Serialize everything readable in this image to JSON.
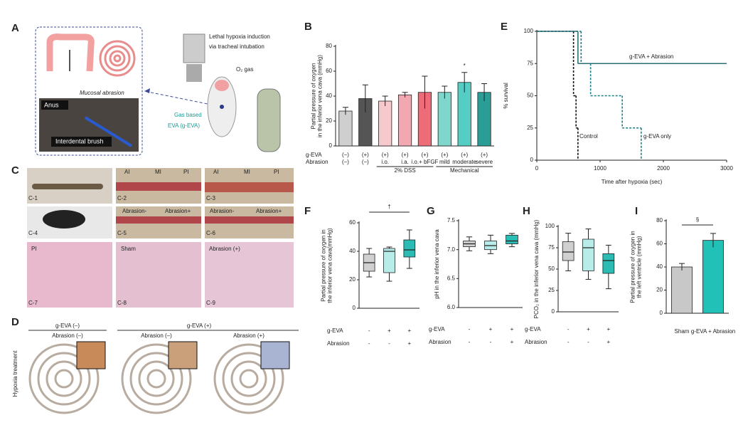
{
  "panel_labels": [
    "A",
    "B",
    "C",
    "D",
    "E",
    "F",
    "G",
    "H",
    "I"
  ],
  "panel_a": {
    "mucosal_abrasion": "Mucosal abrasion",
    "anus": "Anus",
    "brush": "Interdental brush",
    "hypoxia": [
      "Lethal hypoxia induction",
      "via tracheal intubation"
    ],
    "o2": "O₂ gas",
    "geva": [
      "Gas based",
      "EVA (g-EVA)"
    ]
  },
  "panel_c": {
    "c2_regions": [
      "AI",
      "MI",
      "PI"
    ],
    "c3_regions": [
      "AI",
      "MI",
      "PI"
    ],
    "c5_regions": [
      "Abrasion-",
      "Abrasion+"
    ],
    "c6_regions": [
      "Abrasion-",
      "Abrasion+"
    ],
    "histology": [
      "PI",
      "Sham",
      "Abrasion (+)"
    ],
    "ids": [
      "C-1",
      "C-2",
      "C-3",
      "C-4",
      "C-5",
      "C-6",
      "C-7",
      "C-8",
      "C-9"
    ]
  },
  "panel_d": {
    "groups": [
      "g-EVA (–)",
      "g-EVA (+)"
    ],
    "subgroups": [
      "Abrasion (–)",
      "Abrasion (–)",
      "Abrasion (+)"
    ],
    "row": "Hypoxia treatment"
  },
  "chart_data": [
    {
      "type": "bar",
      "ylabel": [
        "Partial pressure of oxygen",
        "in the inferior vena cava (mmHg)"
      ],
      "ylim": [
        0,
        80
      ],
      "yticks": [
        0,
        20,
        40,
        60,
        80
      ],
      "rows": [
        {
          "name": "g-EVA",
          "labels": [
            "(−)",
            "(+)",
            "(+)",
            "(+)",
            "(+)",
            "(+)",
            "(+)",
            "(+)"
          ]
        },
        {
          "name": "Abrasion",
          "labels": [
            "(−)",
            "(−)",
            "i.o.",
            "i.a.",
            "i.o.+ bFGF",
            "mild",
            "moderate",
            "severe"
          ]
        }
      ],
      "group_labels": [
        "2% DSS",
        "Mechanical"
      ],
      "annotation": "*",
      "values": [
        28,
        38,
        36,
        41,
        43,
        43,
        51,
        43
      ],
      "errors": [
        3,
        11,
        4,
        2,
        13,
        5,
        8,
        7
      ],
      "colors": [
        "#cfcfcf",
        "#555555",
        "#f6c9cc",
        "#f2a8b0",
        "#ee6b78",
        "#7fd6cc",
        "#55ccc4",
        "#2a9e96"
      ]
    },
    {
      "type": "step",
      "xlabel": "Time after hypoxia (sec)",
      "ylabel": "% survival",
      "xlim": [
        0,
        3000
      ],
      "xticks": [
        0,
        1000,
        2000,
        3000
      ],
      "ylim": [
        0,
        100
      ],
      "yticks": [
        0,
        25,
        50,
        75,
        100
      ],
      "series": [
        {
          "name": "Control",
          "color": "#111111",
          "line_style": "dashed",
          "x": [
            0,
            580,
            620,
            650
          ],
          "values": [
            100,
            50,
            25,
            0
          ]
        },
        {
          "name": "g-EVA only",
          "color": "#1a7f86",
          "line_style": "dashed",
          "x": [
            0,
            700,
            850,
            1350,
            1650
          ],
          "values": [
            100,
            75,
            50,
            25,
            0
          ]
        },
        {
          "name": "g-EVA + Abrasion",
          "color": "#2a6f76",
          "line_style": "solid",
          "x": [
            0,
            650
          ],
          "values": [
            100,
            75
          ]
        }
      ]
    },
    {
      "type": "box",
      "ylabel": [
        "Partial pressure of oxygen in",
        "the inferior vena cava(mmHg)"
      ],
      "ylim": [
        0,
        60
      ],
      "yticks": [
        0,
        20,
        40,
        60
      ],
      "annotation": "†",
      "rows": [
        {
          "name": "g-EVA",
          "labels": [
            "-",
            "+",
            "+"
          ]
        },
        {
          "name": "Abrasion",
          "labels": [
            "-",
            "-",
            "+"
          ]
        }
      ],
      "series": [
        {
          "color": "#d0d0d0",
          "low": 22,
          "q1": 26,
          "median": 32,
          "q3": 38,
          "high": 42
        },
        {
          "color": "#b8ece8",
          "low": 19,
          "q1": 25,
          "median": 40,
          "q3": 42,
          "high": 43
        },
        {
          "color": "#2bbcb3",
          "low": 28,
          "q1": 36,
          "median": 41,
          "q3": 48,
          "high": 55
        }
      ]
    },
    {
      "type": "box",
      "ylabel": "pH in the inferior vena cava",
      "ylim": [
        6.0,
        7.5
      ],
      "yticks": [
        {
          "value": 6.0,
          "label": "6.0"
        },
        6.5,
        {
          "value": 7.0,
          "label": "7.0"
        },
        7.5
      ],
      "rows": [
        {
          "name": "g-EVA",
          "labels": [
            "-",
            "+",
            "+"
          ]
        },
        {
          "name": "Abrasion",
          "labels": [
            "-",
            "-",
            "+"
          ]
        }
      ],
      "series": [
        {
          "color": "#d0d0d0",
          "low": 6.98,
          "q1": 7.05,
          "median": 7.1,
          "q3": 7.15,
          "high": 7.22
        },
        {
          "color": "#b8ece8",
          "low": 6.93,
          "q1": 7.0,
          "median": 7.07,
          "q3": 7.15,
          "high": 7.25
        },
        {
          "color": "#2bbcb3",
          "low": 7.05,
          "q1": 7.1,
          "median": 7.15,
          "q3": 7.25,
          "high": 7.28
        }
      ]
    },
    {
      "type": "box",
      "ylabel": "PCO₂ in the inferior vena cava (mmHg)",
      "ylim": [
        0,
        100
      ],
      "yticks": [
        0,
        25,
        50,
        75,
        100
      ],
      "rows": [
        {
          "name": "g-EVA",
          "labels": [
            "-",
            "+",
            "+"
          ]
        },
        {
          "name": "Abrasion",
          "labels": [
            "-",
            "-",
            "+"
          ]
        }
      ],
      "series": [
        {
          "color": "#d0d0d0",
          "low": 48,
          "q1": 60,
          "median": 70,
          "q3": 82,
          "high": 92
        },
        {
          "color": "#b8ece8",
          "low": 38,
          "q1": 48,
          "median": 75,
          "q3": 85,
          "high": 97
        },
        {
          "color": "#2bbcb3",
          "low": 27,
          "q1": 45,
          "median": 60,
          "q3": 68,
          "high": 78
        }
      ]
    },
    {
      "type": "bar",
      "ylabel": [
        "Partial pressure of oxygen in",
        "the left ventricle (mmHg)"
      ],
      "ylim": [
        0,
        80
      ],
      "yticks": [
        0,
        20,
        40,
        60,
        80
      ],
      "annotation": "§",
      "categories": [
        "Sham",
        "g-EVA + Abrasion"
      ],
      "values": [
        40,
        63
      ],
      "errors": [
        3,
        6
      ],
      "colors": [
        "#c8c8c8",
        "#22c1b7"
      ]
    }
  ]
}
